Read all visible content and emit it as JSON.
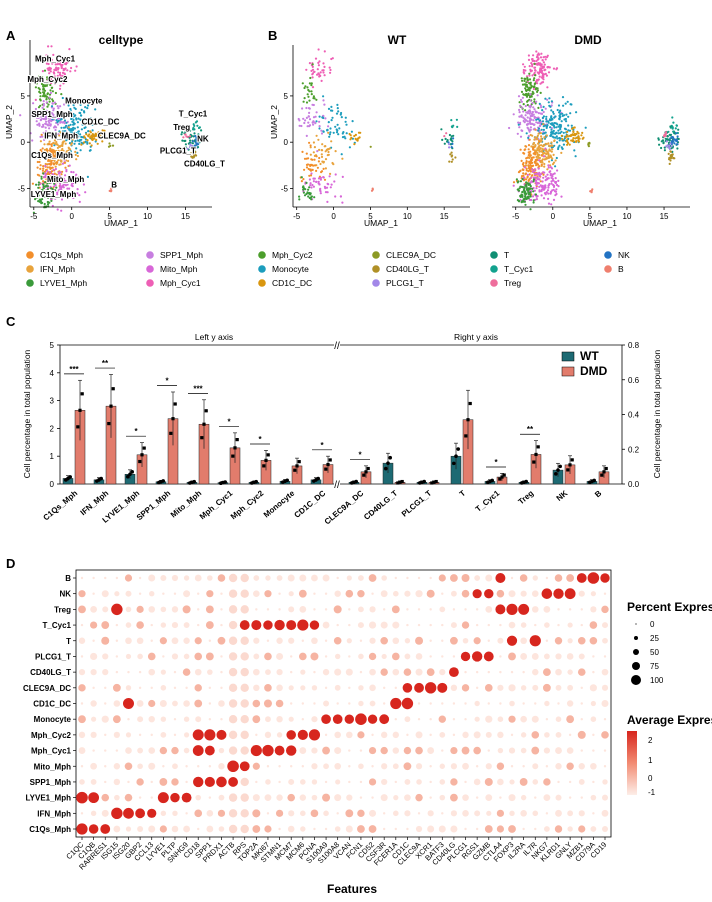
{
  "panel_a": {
    "letter": "A",
    "title": "celltype",
    "xlabel": "UMAP_1",
    "ylabel": "UMAP_2",
    "xticks": [
      "-5",
      "0",
      "5",
      "10",
      "15"
    ],
    "yticks": [
      "5",
      "0",
      "-5"
    ],
    "labels": [
      "Mph_Cyc1",
      "Mph_Cyc2",
      "Monocyte",
      "SPP1_Mph",
      "CD1C_DC",
      "IFN_Mph",
      "CLEC9A_DC",
      "C1Qs_Mph",
      "Mito_Mph",
      "LYVE1_Mph",
      "B",
      "T_Cyc1",
      "Treg",
      "NK",
      "PLCG1_T",
      "CD40LG_T"
    ]
  },
  "panel_b": {
    "letter": "B",
    "titles": [
      "WT",
      "DMD"
    ],
    "xlabel": "UMAP_1",
    "ylabel": "UMAP_2",
    "xticks": [
      "-5",
      "0",
      "5",
      "10",
      "15"
    ],
    "yticks": [
      "5",
      "0",
      "-5"
    ]
  },
  "legend": {
    "items": [
      {
        "label": "C1Qs_Mph",
        "color": "#f28e2b"
      },
      {
        "label": "IFN_Mph",
        "color": "#e8a33c"
      },
      {
        "label": "LYVE1_Mph",
        "color": "#3a9a3a"
      },
      {
        "label": "SPP1_Mph",
        "color": "#c77ee0"
      },
      {
        "label": "Mito_Mph",
        "color": "#d867d8"
      },
      {
        "label": "Mph_Cyc1",
        "color": "#ee5fb5"
      },
      {
        "label": "Mph_Cyc2",
        "color": "#4c9e2c"
      },
      {
        "label": "Monocyte",
        "color": "#1c9dbd"
      },
      {
        "label": "CD1C_DC",
        "color": "#d9960f"
      },
      {
        "label": "CLEC9A_DC",
        "color": "#8c9a24"
      },
      {
        "label": "CD40LG_T",
        "color": "#b09027"
      },
      {
        "label": "PLCG1_T",
        "color": "#a287e8"
      },
      {
        "label": "T",
        "color": "#108f73"
      },
      {
        "label": "T_Cyc1",
        "color": "#12a28e"
      },
      {
        "label": "Treg",
        "color": "#ee6e9c"
      },
      {
        "label": "NK",
        "color": "#2273c3"
      },
      {
        "label": "B",
        "color": "#ef7f6e"
      }
    ]
  },
  "panel_c": {
    "letter": "C",
    "left_axis_title": "Left y axis",
    "right_axis_title": "Right y axis",
    "ylabel_left": "Cell percentage in total population",
    "ylabel_right": "Cell percentage in total population",
    "legend_wt": "WT",
    "legend_dmd": "DMD",
    "wt_color": "#1d6a73",
    "dmd_color": "#e27c6c"
  },
  "panel_d": {
    "letter": "D",
    "xlabel": "Features",
    "size_legend_title": "Percent Expressed",
    "size_legend_labels": [
      "0",
      "25",
      "50",
      "75",
      "100"
    ],
    "color_legend_title": "Average Expression",
    "color_legend_labels": [
      "2",
      "1",
      "0",
      "-1"
    ]
  },
  "chart_data": [
    {
      "type": "bar",
      "title": "Left y axis",
      "ylabel": "Cell percentage in total population",
      "ylim": [
        0,
        5
      ],
      "categories": [
        "C1Qs_Mph",
        "IFN_Mph",
        "LYVE1_Mph",
        "SPP1_Mph",
        "Mito_Mph",
        "Mph_Cyc1",
        "Mph_Cyc2",
        "Monocyte",
        "CD1C_DC"
      ],
      "series": [
        {
          "name": "WT",
          "values": [
            0.2,
            0.15,
            0.35,
            0.08,
            0.06,
            0.05,
            0.06,
            0.1,
            0.15
          ]
        },
        {
          "name": "DMD",
          "values": [
            2.65,
            2.8,
            1.05,
            2.35,
            2.15,
            1.3,
            0.85,
            0.65,
            0.7
          ]
        }
      ],
      "significance": [
        "***",
        "**",
        "*",
        "*",
        "***",
        "*",
        "*",
        "",
        "*"
      ]
    },
    {
      "type": "bar",
      "title": "Right y axis",
      "ylabel": "Cell percentage in total population",
      "ylim": [
        0,
        0.8
      ],
      "categories": [
        "CLEC9A_DC",
        "CD40LG_T",
        "PLCG1_T",
        "T",
        "T_Cyc1",
        "Treg",
        "NK",
        "B"
      ],
      "series": [
        {
          "name": "WT",
          "values": [
            0.01,
            0.12,
            0.01,
            0.16,
            0.015,
            0.01,
            0.08,
            0.015
          ]
        },
        {
          "name": "DMD",
          "values": [
            0.07,
            0.01,
            0.01,
            0.37,
            0.04,
            0.17,
            0.11,
            0.07
          ]
        }
      ],
      "significance": [
        "*",
        "",
        "",
        "",
        "*",
        "**",
        "",
        ""
      ]
    },
    {
      "type": "heatmap",
      "title": "",
      "xlabel": "Features",
      "rows": [
        "B",
        "NK",
        "Treg",
        "T_Cyc1",
        "T",
        "PLCG1_T",
        "CD40LG_T",
        "CLEC9A_DC",
        "CD1C_DC",
        "Monocyte",
        "Mph_Cyc2",
        "Mph_Cyc1",
        "Mito_Mph",
        "SPP1_Mph",
        "LYVE1_Mph",
        "IFN_Mph",
        "C1Qs_Mph"
      ],
      "features": [
        "C1QC",
        "C1QB",
        "RARRES1",
        "ISG15",
        "ISG20",
        "GBP2",
        "CCL13",
        "LYVE1",
        "PLTP",
        "SNHG9",
        "CD18",
        "SPP1",
        "PRDX1",
        "ACTB",
        "RPS",
        "TOP2A",
        "MKI67",
        "STMN1",
        "MCM7",
        "MCM6",
        "PCNA",
        "S100A9",
        "S100A8",
        "VCAN",
        "FCN1",
        "CD52",
        "CSF3R",
        "FCER1A",
        "CD1C",
        "CLEC9A",
        "XCR1",
        "BATF3",
        "CD40LG",
        "PLCG1",
        "RGS1",
        "GZMB",
        "CTLA4",
        "FOXP3",
        "IL2RA",
        "IL7R",
        "NKG7",
        "KLRD1",
        "GNLY",
        "MZB1",
        "CD79A",
        "CD19"
      ]
    }
  ]
}
